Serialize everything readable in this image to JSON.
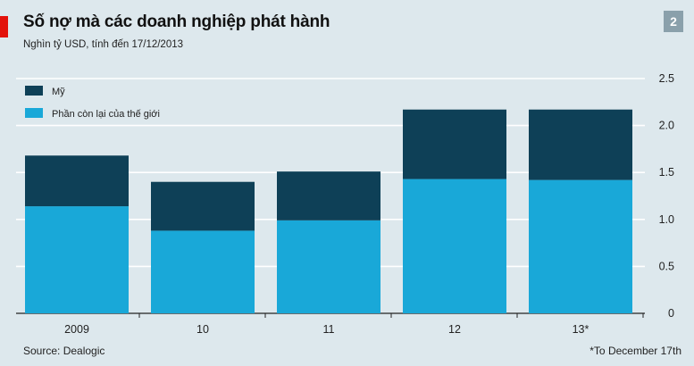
{
  "header": {
    "title": "Số nợ mà các doanh nghiệp phát hành",
    "subtitle": "Nghìn tỷ USD, tính đến 17/12/2013",
    "badge": "2"
  },
  "footer": {
    "source": "Source: Dealogic",
    "footnote": "*To December 17th"
  },
  "colors": {
    "us": "#0e4057",
    "rest": "#19a8d8",
    "grid": "#ffffff",
    "background": "#dde8ed"
  },
  "chart_data": {
    "type": "bar",
    "stacked": true,
    "categories": [
      "2009",
      "10",
      "11",
      "12",
      "13*"
    ],
    "series": [
      {
        "name": "Phần còn lại của thế giới",
        "values": [
          1.14,
          0.88,
          0.99,
          1.43,
          1.42
        ]
      },
      {
        "name": "Mỹ",
        "values": [
          0.54,
          0.52,
          0.52,
          0.74,
          0.75
        ]
      }
    ],
    "yticks": [
      "0",
      "0.5",
      "1.0",
      "1.5",
      "2.0",
      "2.5"
    ],
    "ylim": [
      0,
      2.5
    ],
    "grid": true,
    "legend_position": "top-left",
    "y_axis_position": "right"
  }
}
